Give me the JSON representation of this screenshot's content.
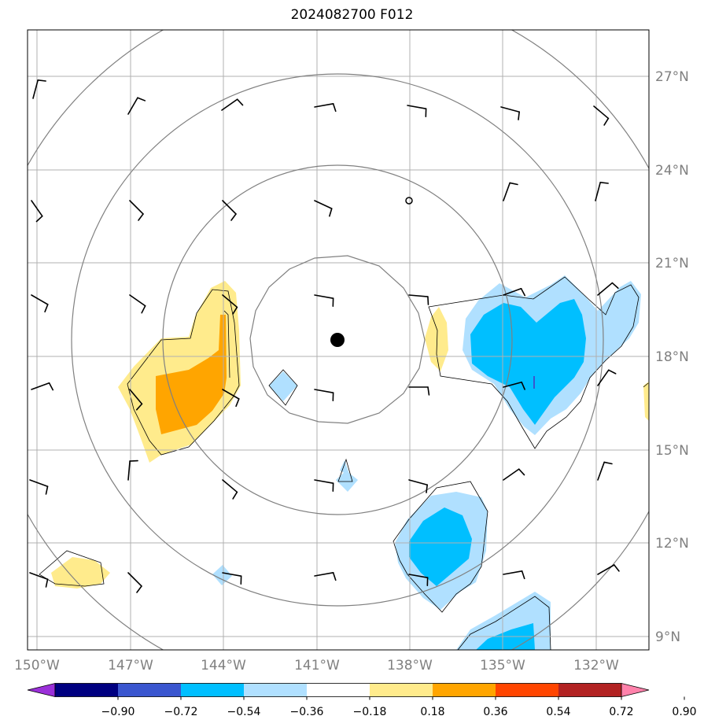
{
  "title": "2024082700 F012",
  "lon_labels": [
    "150°W",
    "147°W",
    "144°W",
    "141°W",
    "138°W",
    "135°W",
    "132°W"
  ],
  "lat_labels": [
    "27°N",
    "24°N",
    "21°N",
    "18°N",
    "15°N",
    "12°N",
    "9°N"
  ],
  "colorbar": {
    "labels": [
      "−0.90",
      "−0.72",
      "−0.54",
      "−0.36",
      "−0.18",
      "0.18",
      "0.36",
      "0.54",
      "0.72",
      "0.90"
    ],
    "colors": [
      "#9b30d9",
      "#000080",
      "#3a56cf",
      "#00bfff",
      "#b0e0ff",
      "#ffffff",
      "#ffeb8c",
      "#ffa500",
      "#ff4500",
      "#b22222",
      "#ff82ab"
    ]
  },
  "fill_colors": {
    "light_blue": "#b0e0ff",
    "blue": "#00bfff",
    "dark_blue": "#3a56cf",
    "light_yellow": "#ffeb8c",
    "orange": "#ffa500"
  },
  "map_style": {
    "grid_color": "#b0b0b0",
    "ring_color": "#808080",
    "barb_color": "#000000"
  }
}
